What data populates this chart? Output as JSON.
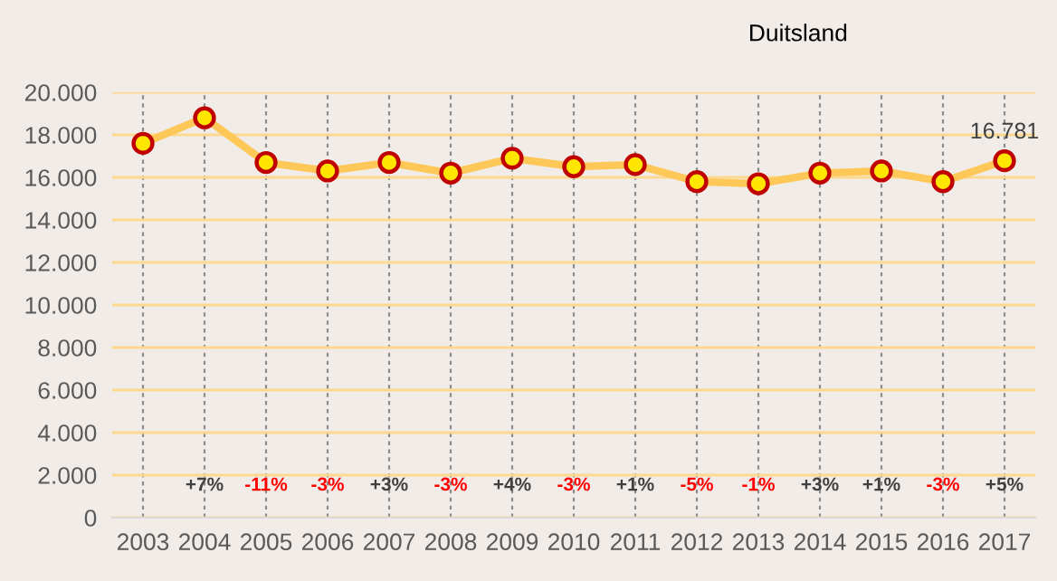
{
  "chart_data": {
    "type": "line",
    "title": "Duitsland",
    "categories": [
      "2003",
      "2004",
      "2005",
      "2006",
      "2007",
      "2008",
      "2009",
      "2010",
      "2011",
      "2012",
      "2013",
      "2014",
      "2015",
      "2016",
      "2017"
    ],
    "series": [
      {
        "color": "#fdc858",
        "values": [
          17600,
          18800,
          16700,
          16300,
          16700,
          16200,
          16900,
          16500,
          16600,
          15800,
          15700,
          16200,
          16300,
          15800,
          16781
        ],
        "value_labels": [
          null,
          null,
          null,
          null,
          null,
          null,
          null,
          null,
          null,
          null,
          null,
          null,
          null,
          null,
          "16.781"
        ]
      }
    ],
    "ylim": [
      0,
      20000
    ],
    "yticks": [
      0,
      {
        "value": 2000,
        "label": "2.000"
      },
      {
        "value": 4000,
        "label": "4.000"
      },
      {
        "value": 6000,
        "label": "6.000"
      },
      {
        "value": 8000,
        "label": "8.000"
      },
      {
        "value": 10000,
        "label": "10.000"
      },
      {
        "value": 12000,
        "label": "12.000"
      },
      {
        "value": 14000,
        "label": "14.000"
      },
      {
        "value": 16000,
        "label": "16.000"
      },
      {
        "value": 18000,
        "label": "18.000"
      },
      {
        "value": 20000,
        "label": "20.000"
      }
    ],
    "grid": true,
    "marker": "circle",
    "line_style": "solid",
    "legend": false,
    "annotations": [
      "+7%",
      "-11%",
      "-3%",
      "+3%",
      "-3%",
      "+4%",
      "-3%",
      "+1%",
      "-5%",
      "-1%",
      "+3%",
      "+1%",
      "-3%",
      "+5%"
    ]
  }
}
